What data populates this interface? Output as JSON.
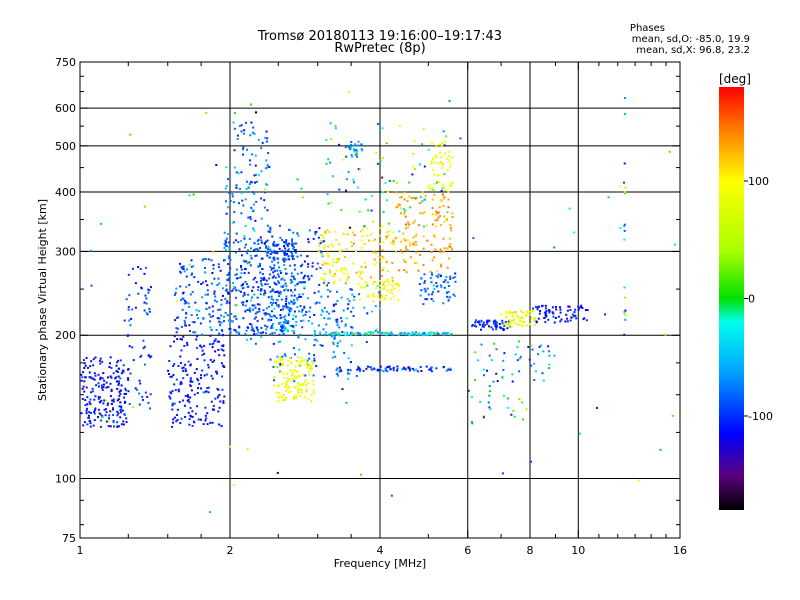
{
  "chart_data": {
    "type": "scatter",
    "title": "Tromsø 20180113 19:16:00–19:17:43",
    "subtitle": "RwPretec (8p)",
    "stats": {
      "heading": "Phases",
      "line1": "mean, sd,O: -85.0, 19.9",
      "line2": "mean, sd,X:  96.8, 23.2"
    },
    "xlabel": "Frequency [MHz]",
    "ylabel": "Stationary phase Virtual Height [km]",
    "x_scale": "log",
    "y_scale": "log",
    "xlim": [
      1,
      16
    ],
    "ylim": [
      75,
      750
    ],
    "x_ticks": [
      {
        "value": 1,
        "label": "1"
      },
      {
        "value": 2,
        "label": "2"
      },
      {
        "value": 4,
        "label": "4"
      },
      {
        "value": 6,
        "label": "6"
      },
      {
        "value": 8,
        "label": "8"
      },
      {
        "value": 10,
        "label": "10"
      },
      {
        "value": 16,
        "label": "16"
      }
    ],
    "x_grid": [
      2,
      4,
      6,
      8,
      10
    ],
    "x_minor_ticks": [
      1.25,
      1.5,
      1.75,
      2.5,
      3,
      3.5,
      5,
      7,
      9,
      11,
      12,
      13,
      14,
      15
    ],
    "y_ticks": [
      {
        "value": 75,
        "label": "75"
      },
      {
        "value": 100,
        "label": "100"
      },
      {
        "value": 200,
        "label": "200"
      },
      {
        "value": 300,
        "label": "300"
      },
      {
        "value": 400,
        "label": "400"
      },
      {
        "value": 500,
        "label": "500"
      },
      {
        "value": 600,
        "label": "600"
      },
      {
        "value": 750,
        "label": "750"
      }
    ],
    "y_grid": [
      100,
      200,
      300,
      400,
      500,
      600
    ],
    "y_minor_ticks": [
      80,
      90,
      125,
      150,
      175,
      250,
      350,
      450,
      550,
      650,
      700
    ],
    "colorbar": {
      "label": "[deg]",
      "range": [
        -180,
        180
      ],
      "ticks": [
        {
          "value": 100,
          "label": "100"
        },
        {
          "value": 0,
          "label": "0"
        },
        {
          "value": -100,
          "label": "-100"
        }
      ],
      "stops": [
        {
          "v": -180,
          "color": "#000000"
        },
        {
          "v": -150,
          "color": "#5a0080"
        },
        {
          "v": -115,
          "color": "#0000ff"
        },
        {
          "v": -60,
          "color": "#00aaff"
        },
        {
          "v": -20,
          "color": "#00ffee"
        },
        {
          "v": 0,
          "color": "#00e000"
        },
        {
          "v": 40,
          "color": "#aaff00"
        },
        {
          "v": 100,
          "color": "#ffff00"
        },
        {
          "v": 140,
          "color": "#ff8800"
        },
        {
          "v": 180,
          "color": "#ff0000"
        }
      ]
    },
    "clusters": [
      {
        "f": [
          1.0,
          1.25
        ],
        "h": [
          128,
          180
        ],
        "n": 200,
        "phase": [
          -110,
          15
        ],
        "shape": "box"
      },
      {
        "f": [
          1.2,
          1.4
        ],
        "h": [
          140,
          280
        ],
        "n": 70,
        "phase": [
          -100,
          20
        ],
        "shape": "box"
      },
      {
        "f": [
          1.5,
          1.95
        ],
        "h": [
          128,
          200
        ],
        "n": 190,
        "phase": [
          -110,
          15
        ],
        "shape": "box"
      },
      {
        "f": [
          1.55,
          1.95
        ],
        "h": [
          200,
          290
        ],
        "n": 130,
        "phase": [
          -90,
          25
        ],
        "shape": "box"
      },
      {
        "f": [
          1.95,
          2.7
        ],
        "h": [
          200,
          320
        ],
        "n": 380,
        "phase": [
          -90,
          25
        ],
        "shape": "box"
      },
      {
        "f": [
          1.95,
          2.4
        ],
        "h": [
          300,
          560
        ],
        "n": 120,
        "phase": [
          -80,
          35
        ],
        "shape": "box"
      },
      {
        "f": [
          2.4,
          3.6
        ],
        "h": [
          160,
          250
        ],
        "n": 140,
        "phase": [
          -80,
          30
        ],
        "shape": "box"
      },
      {
        "f": [
          2.4,
          3.1
        ],
        "h": [
          240,
          340
        ],
        "n": 110,
        "phase": [
          -90,
          25
        ],
        "shape": "box"
      },
      {
        "f": [
          2.1,
          4.0
        ],
        "h": [
          190,
          260
        ],
        "n": 90,
        "phase": [
          -60,
          40
        ],
        "shape": "box"
      },
      {
        "f": [
          2.45,
          2.95
        ],
        "h": [
          145,
          180
        ],
        "n": 130,
        "phase": [
          90,
          15
        ],
        "shape": "box"
      },
      {
        "f": [
          3.0,
          4.3
        ],
        "h": [
          255,
          340
        ],
        "n": 140,
        "phase": [
          100,
          30
        ],
        "shape": "box"
      },
      {
        "f": [
          3.0,
          5.6
        ],
        "h": [
          200,
          203
        ],
        "n": 100,
        "phase": [
          -40,
          40
        ],
        "shape": "box"
      },
      {
        "f": [
          3.3,
          5.6
        ],
        "h": [
          168,
          172
        ],
        "n": 80,
        "phase": [
          -100,
          30
        ],
        "shape": "box"
      },
      {
        "f": [
          3.6,
          4.4
        ],
        "h": [
          235,
          260
        ],
        "n": 50,
        "phase": [
          100,
          15
        ],
        "shape": "box"
      },
      {
        "f": [
          4.3,
          5.6
        ],
        "h": [
          270,
          400
        ],
        "n": 130,
        "phase": [
          130,
          15
        ],
        "shape": "box"
      },
      {
        "f": [
          4.8,
          5.7
        ],
        "h": [
          230,
          270
        ],
        "n": 60,
        "phase": [
          -80,
          25
        ],
        "shape": "box"
      },
      {
        "f": [
          5.0,
          5.6
        ],
        "h": [
          400,
          510
        ],
        "n": 50,
        "phase": [
          90,
          15
        ],
        "shape": "box"
      },
      {
        "f": [
          3.4,
          3.7
        ],
        "h": [
          470,
          510
        ],
        "n": 25,
        "phase": [
          -70,
          20
        ],
        "shape": "box"
      },
      {
        "f": [
          3.1,
          5.5
        ],
        "h": [
          330,
          560
        ],
        "n": 80,
        "phase": [
          -30,
          80
        ],
        "shape": "box"
      },
      {
        "f": [
          6.1,
          7.3
        ],
        "h": [
          205,
          215
        ],
        "n": 55,
        "phase": [
          -100,
          25
        ],
        "shape": "box"
      },
      {
        "f": [
          7.0,
          8.2
        ],
        "h": [
          208,
          226
        ],
        "n": 60,
        "phase": [
          80,
          30
        ],
        "shape": "box"
      },
      {
        "f": [
          8.1,
          10.5
        ],
        "h": [
          212,
          232
        ],
        "n": 70,
        "phase": [
          -110,
          15
        ],
        "shape": "box"
      },
      {
        "f": [
          6.2,
          9.0
        ],
        "h": [
          160,
          195
        ],
        "n": 45,
        "phase": [
          -60,
          60
        ],
        "shape": "box"
      },
      {
        "f": [
          6.0,
          8.0
        ],
        "h": [
          130,
          160
        ],
        "n": 25,
        "phase": [
          -30,
          80
        ],
        "shape": "box"
      },
      {
        "f": [
          12.35,
          12.45
        ],
        "h": [
          200,
          640
        ],
        "n": 18,
        "phase": [
          -20,
          100
        ],
        "shape": "box"
      },
      {
        "f": [
          1.0,
          16.0
        ],
        "h": [
          85,
          650
        ],
        "n": 70,
        "phase": [
          -20,
          100
        ],
        "shape": "box"
      }
    ]
  }
}
